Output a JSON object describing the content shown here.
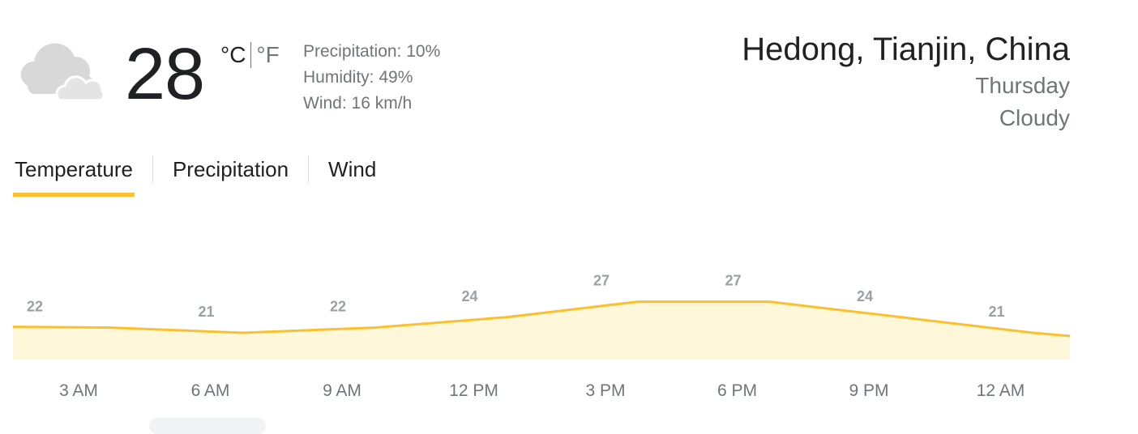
{
  "current": {
    "temperature": "28",
    "unit_c": "°C",
    "unit_f": "°F",
    "precipitation": "Precipitation: 10%",
    "humidity": "Humidity: 49%",
    "wind": "Wind: 16 km/h",
    "icon": "cloudy-icon"
  },
  "location": {
    "name": "Hedong, Tianjin, China",
    "day": "Thursday",
    "condition": "Cloudy"
  },
  "tabs": [
    {
      "label": "Temperature",
      "active": true
    },
    {
      "label": "Precipitation",
      "active": false
    },
    {
      "label": "Wind",
      "active": false
    }
  ],
  "colors": {
    "accent": "#fbc02d",
    "fill": "#fef7da",
    "label": "#9aa0a6"
  },
  "chart_data": {
    "type": "area",
    "categories": [
      "3 AM",
      "6 AM",
      "9 AM",
      "12 PM",
      "3 PM",
      "6 PM",
      "9 PM",
      "12 AM"
    ],
    "values": [
      22,
      21,
      22,
      24,
      27,
      27,
      24,
      21
    ],
    "x_labels": [
      "3 AM",
      "6 AM",
      "9 AM",
      "12 PM",
      "3 PM",
      "6 PM",
      "9 PM",
      "12 AM"
    ],
    "title": "",
    "xlabel": "",
    "ylabel": ""
  }
}
